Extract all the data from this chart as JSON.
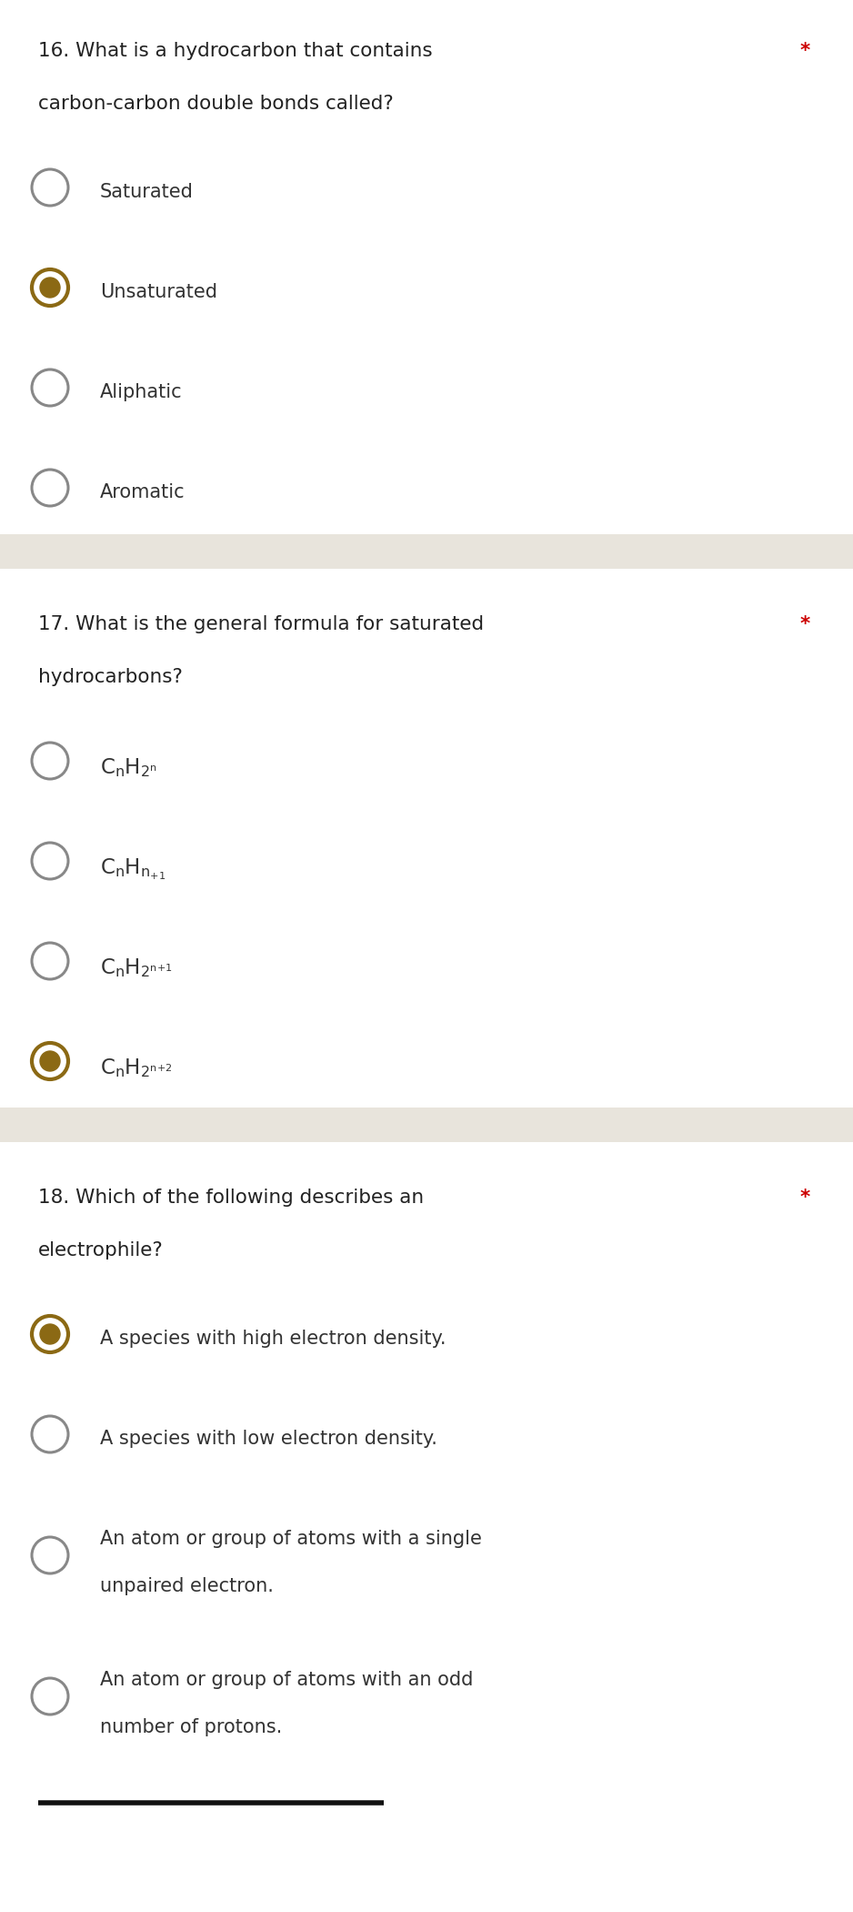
{
  "bg_color": "#ffffff",
  "separator_color": "#e8e4dc",
  "question_color": "#222222",
  "option_color": "#333333",
  "star_color": "#cc0000",
  "circle_color": "#888888",
  "selected_ring_color": "#8B6914",
  "selected_fill_color": "#8B6914",
  "fig_width": 9.38,
  "fig_height": 21.01,
  "dpi": 100,
  "q16": {
    "num": "16.",
    "line1": "What is a hydrocarbon that contains",
    "line2": "carbon-carbon double bonds called?",
    "star": "*",
    "options": [
      "Saturated",
      "Unsaturated",
      "Aliphatic",
      "Aromatic"
    ],
    "selected": 1
  },
  "q17": {
    "num": "17.",
    "line1": "What is the general formula for saturated",
    "line2": "hydrocarbons?",
    "star": "*",
    "options": [
      "CnH2n_formula",
      "CnHn+1_formula",
      "CnH2n+1_formula",
      "CnH2n+2_formula"
    ],
    "selected": 3
  },
  "q18": {
    "num": "18.",
    "line1": "Which of the following describes an",
    "line2": "electrophile?",
    "star": "*",
    "options": [
      "A species with high electron density.",
      "A species with low electron density.",
      "An atom or group of atoms with a single\nunpaired electron.",
      "An atom or group of atoms with an odd\nnumber of protons."
    ],
    "selected": 0
  }
}
